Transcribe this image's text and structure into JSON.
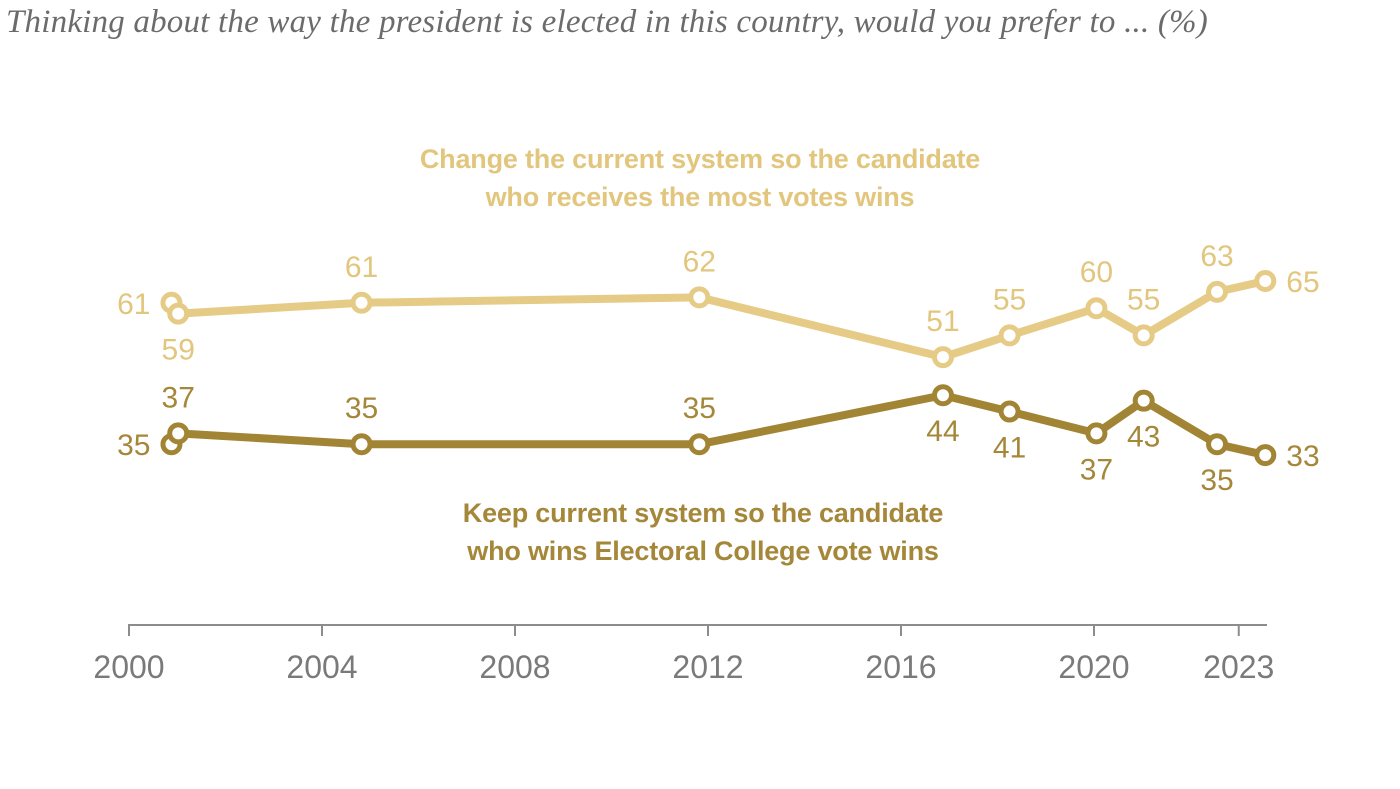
{
  "title": "Thinking about the way the president is elected in this country, would you prefer to ... (%)",
  "colors": {
    "title_text": "#6b6b6b",
    "axis_line": "#8c8c8c",
    "tick_label": "#7a7a7a",
    "background": "#ffffff",
    "change_series": "#e5cb86",
    "keep_series": "#a28534"
  },
  "chart_data": {
    "type": "line",
    "title": "Thinking about the way the president is elected in this country, would you prefer to ... (%)",
    "grid": "off",
    "legend_position": "inline-labels",
    "x_axis": {
      "range_years": [
        2000,
        2024
      ],
      "ticks": [
        {
          "label": "2000",
          "year": 2000
        },
        {
          "label": "2004",
          "year": 2004
        },
        {
          "label": "2008",
          "year": 2008
        },
        {
          "label": "2012",
          "year": 2012
        },
        {
          "label": "2016",
          "year": 2016
        },
        {
          "label": "2020",
          "year": 2020
        },
        {
          "label": "2023",
          "year": 2023
        }
      ]
    },
    "y_axis": {
      "unit": "%",
      "shown": false
    },
    "series": [
      {
        "name": "Change the current system so the candidate who receives the most votes wins",
        "legend_lines": [
          "Change the current system so the candidate",
          "who receives the most votes wins"
        ],
        "line_color": "#e5cb86",
        "text_color": "#e2c67d",
        "points": [
          {
            "year": 2000.88,
            "value": 61,
            "label_pos": "left"
          },
          {
            "year": 2001.02,
            "value": 59,
            "label_pos": "below"
          },
          {
            "year": 2004.82,
            "value": 61,
            "label_pos": "above"
          },
          {
            "year": 2011.82,
            "value": 62,
            "label_pos": "above"
          },
          {
            "year": 2016.87,
            "value": 51,
            "label_pos": "above"
          },
          {
            "year": 2018.25,
            "value": 55,
            "label_pos": "above"
          },
          {
            "year": 2020.05,
            "value": 60,
            "label_pos": "above"
          },
          {
            "year": 2021.03,
            "value": 55,
            "label_pos": "above"
          },
          {
            "year": 2022.55,
            "value": 63,
            "label_pos": "above"
          },
          {
            "year": 2023.55,
            "value": 65,
            "label_pos": "right"
          }
        ]
      },
      {
        "name": "Keep current system so the candidate who wins Electoral College vote wins",
        "legend_lines": [
          "Keep current system so the candidate",
          "who wins Electoral College vote wins"
        ],
        "line_color": "#a28534",
        "text_color": "#a5873a",
        "points": [
          {
            "year": 2000.88,
            "value": 35,
            "label_pos": "left"
          },
          {
            "year": 2001.02,
            "value": 37,
            "label_pos": "above"
          },
          {
            "year": 2004.82,
            "value": 35,
            "label_pos": "above"
          },
          {
            "year": 2011.82,
            "value": 35,
            "label_pos": "above"
          },
          {
            "year": 2016.87,
            "value": 44,
            "label_pos": "below"
          },
          {
            "year": 2018.25,
            "value": 41,
            "label_pos": "below"
          },
          {
            "year": 2020.05,
            "value": 37,
            "label_pos": "below"
          },
          {
            "year": 2021.03,
            "value": 43,
            "label_pos": "below"
          },
          {
            "year": 2022.55,
            "value": 35,
            "label_pos": "below"
          },
          {
            "year": 2023.55,
            "value": 33,
            "label_pos": "right"
          }
        ]
      }
    ]
  }
}
